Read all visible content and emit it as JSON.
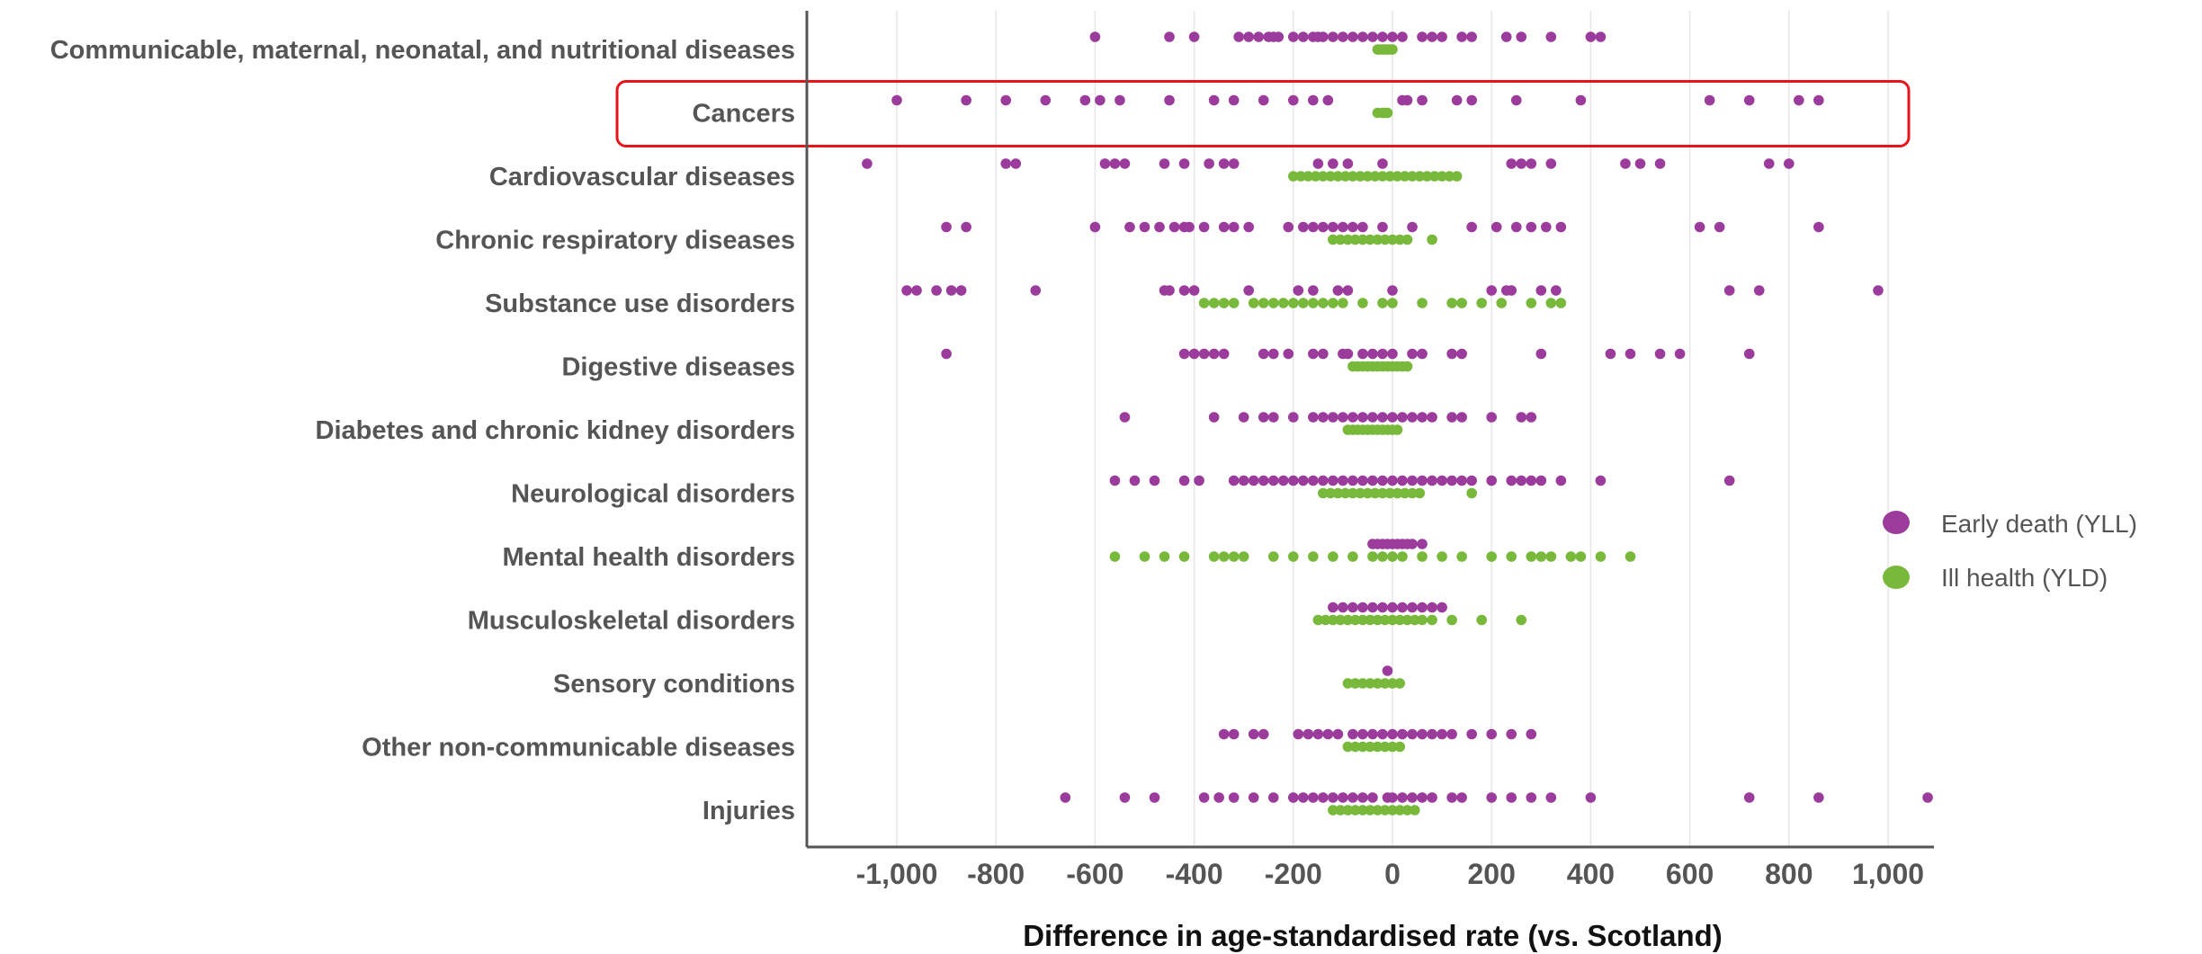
{
  "chart_data": {
    "type": "scatter",
    "xlabel": "Difference in age-standardised rate (vs. Scotland)",
    "xlim": [
      -1050,
      1100
    ],
    "xticks": [
      -1000,
      -800,
      -600,
      -400,
      -200,
      0,
      200,
      400,
      600,
      800,
      1000
    ],
    "xtick_labels": [
      "-1,000",
      "-800",
      "-600",
      "-400",
      "-200",
      "0",
      "200",
      "400",
      "600",
      "800",
      "1,000"
    ],
    "grid": "vertical",
    "legend_position": "right",
    "highlight": {
      "category": "Cancers",
      "color": "#e8141c"
    },
    "categories": [
      "Communicable, maternal, neonatal, and nutritional diseases",
      "Cancers",
      "Cardiovascular diseases",
      "Chronic respiratory diseases",
      "Substance use disorders",
      "Digestive diseases",
      "Diabetes and chronic kidney disorders",
      "Neurological disorders",
      "Mental health disorders",
      "Musculoskeletal disorders",
      "Sensory conditions",
      "Other non-communicable diseases",
      "Injuries"
    ],
    "series": [
      {
        "name": "Early death (YLL)",
        "color": "#9b3b9b",
        "values": [
          [
            -600,
            -450,
            -400,
            -310,
            -290,
            -270,
            -250,
            -240,
            -230,
            -200,
            -180,
            -160,
            -150,
            -140,
            -120,
            -100,
            -80,
            -60,
            -40,
            -20,
            0,
            20,
            60,
            80,
            100,
            140,
            160,
            230,
            260,
            320,
            400,
            420
          ],
          [
            -1000,
            -860,
            -780,
            -700,
            -620,
            -590,
            -550,
            -450,
            -360,
            -320,
            -260,
            -200,
            -160,
            -130,
            20,
            30,
            60,
            130,
            160,
            250,
            380,
            640,
            720,
            820,
            860
          ],
          [
            -1060,
            -780,
            -760,
            -580,
            -560,
            -540,
            -460,
            -420,
            -370,
            -340,
            -320,
            -150,
            -120,
            -90,
            -20,
            240,
            260,
            280,
            320,
            470,
            500,
            540,
            760,
            800
          ],
          [
            -900,
            -860,
            -600,
            -530,
            -500,
            -470,
            -440,
            -420,
            -410,
            -380,
            -340,
            -320,
            -290,
            -210,
            -180,
            -160,
            -140,
            -120,
            -100,
            -80,
            -60,
            -20,
            40,
            160,
            210,
            250,
            280,
            310,
            340,
            620,
            660,
            860
          ],
          [
            -980,
            -960,
            -920,
            -890,
            -870,
            -720,
            -460,
            -450,
            -420,
            -400,
            -290,
            -190,
            -160,
            -110,
            -90,
            0,
            200,
            230,
            240,
            300,
            330,
            680,
            740,
            980
          ],
          [
            -900,
            -420,
            -400,
            -380,
            -360,
            -340,
            -260,
            -240,
            -210,
            -160,
            -140,
            -100,
            -90,
            -60,
            -40,
            -20,
            0,
            40,
            60,
            120,
            140,
            300,
            440,
            480,
            540,
            580,
            720
          ],
          [
            -540,
            -360,
            -300,
            -260,
            -240,
            -200,
            -160,
            -140,
            -120,
            -100,
            -80,
            -60,
            -40,
            -20,
            0,
            20,
            40,
            60,
            80,
            120,
            140,
            200,
            260,
            280
          ],
          [
            -560,
            -520,
            -480,
            -420,
            -390,
            -320,
            -300,
            -280,
            -260,
            -240,
            -220,
            -200,
            -180,
            -160,
            -140,
            -120,
            -100,
            -80,
            -60,
            -40,
            -20,
            0,
            20,
            40,
            60,
            80,
            100,
            120,
            140,
            160,
            200,
            240,
            260,
            280,
            300,
            340,
            420,
            680
          ],
          [
            -40,
            -30,
            -20,
            -10,
            0,
            10,
            20,
            30,
            40,
            60
          ],
          [
            -120,
            -100,
            -80,
            -60,
            -40,
            -20,
            0,
            20,
            40,
            60,
            80,
            100
          ],
          [
            -10
          ],
          [
            -340,
            -320,
            -280,
            -260,
            -190,
            -170,
            -150,
            -130,
            -110,
            -80,
            -60,
            -40,
            -20,
            0,
            20,
            40,
            60,
            80,
            100,
            120,
            160,
            200,
            240,
            280
          ],
          [
            -660,
            -540,
            -480,
            -380,
            -350,
            -320,
            -280,
            -240,
            -200,
            -180,
            -160,
            -140,
            -120,
            -100,
            -80,
            -60,
            -40,
            -10,
            0,
            20,
            40,
            60,
            80,
            120,
            140,
            200,
            240,
            280,
            320,
            400,
            720,
            860,
            1080
          ]
        ]
      },
      {
        "name": "Ill health (YLD)",
        "color": "#78b83a",
        "values": [
          [
            -30,
            -25,
            -20,
            -15,
            -10,
            -5,
            0
          ],
          [
            -30,
            -20,
            -15,
            -10
          ],
          [
            -200,
            -185,
            -170,
            -155,
            -140,
            -125,
            -110,
            -95,
            -80,
            -65,
            -50,
            -35,
            -20,
            -5,
            10,
            25,
            40,
            55,
            70,
            85,
            100,
            115,
            130
          ],
          [
            -120,
            -105,
            -90,
            -75,
            -60,
            -45,
            -30,
            -15,
            0,
            15,
            30,
            80
          ],
          [
            -380,
            -360,
            -340,
            -320,
            -280,
            -260,
            -240,
            -220,
            -200,
            -180,
            -160,
            -140,
            -120,
            -100,
            -60,
            -20,
            0,
            60,
            120,
            140,
            180,
            220,
            280,
            320,
            340
          ],
          [
            -80,
            -70,
            -60,
            -50,
            -40,
            -30,
            -20,
            -10,
            0,
            10,
            20,
            30
          ],
          [
            -90,
            -80,
            -70,
            -60,
            -50,
            -40,
            -30,
            -20,
            -10,
            0,
            10
          ],
          [
            -140,
            -125,
            -110,
            -95,
            -80,
            -65,
            -50,
            -35,
            -20,
            -5,
            10,
            25,
            40,
            55,
            160
          ],
          [
            -560,
            -500,
            -460,
            -420,
            -360,
            -340,
            -320,
            -300,
            -240,
            -200,
            -160,
            -120,
            -80,
            -40,
            -20,
            0,
            20,
            60,
            100,
            140,
            200,
            240,
            280,
            300,
            320,
            360,
            380,
            420,
            480
          ],
          [
            -150,
            -135,
            -120,
            -105,
            -90,
            -75,
            -60,
            -45,
            -30,
            -15,
            0,
            15,
            30,
            45,
            60,
            80,
            120,
            180,
            260
          ],
          [
            -90,
            -75,
            -60,
            -45,
            -30,
            -15,
            0,
            15
          ],
          [
            -90,
            -75,
            -60,
            -45,
            -30,
            -15,
            0,
            15
          ],
          [
            -120,
            -105,
            -90,
            -75,
            -60,
            -45,
            -30,
            -15,
            0,
            15,
            30,
            45
          ]
        ]
      }
    ]
  }
}
